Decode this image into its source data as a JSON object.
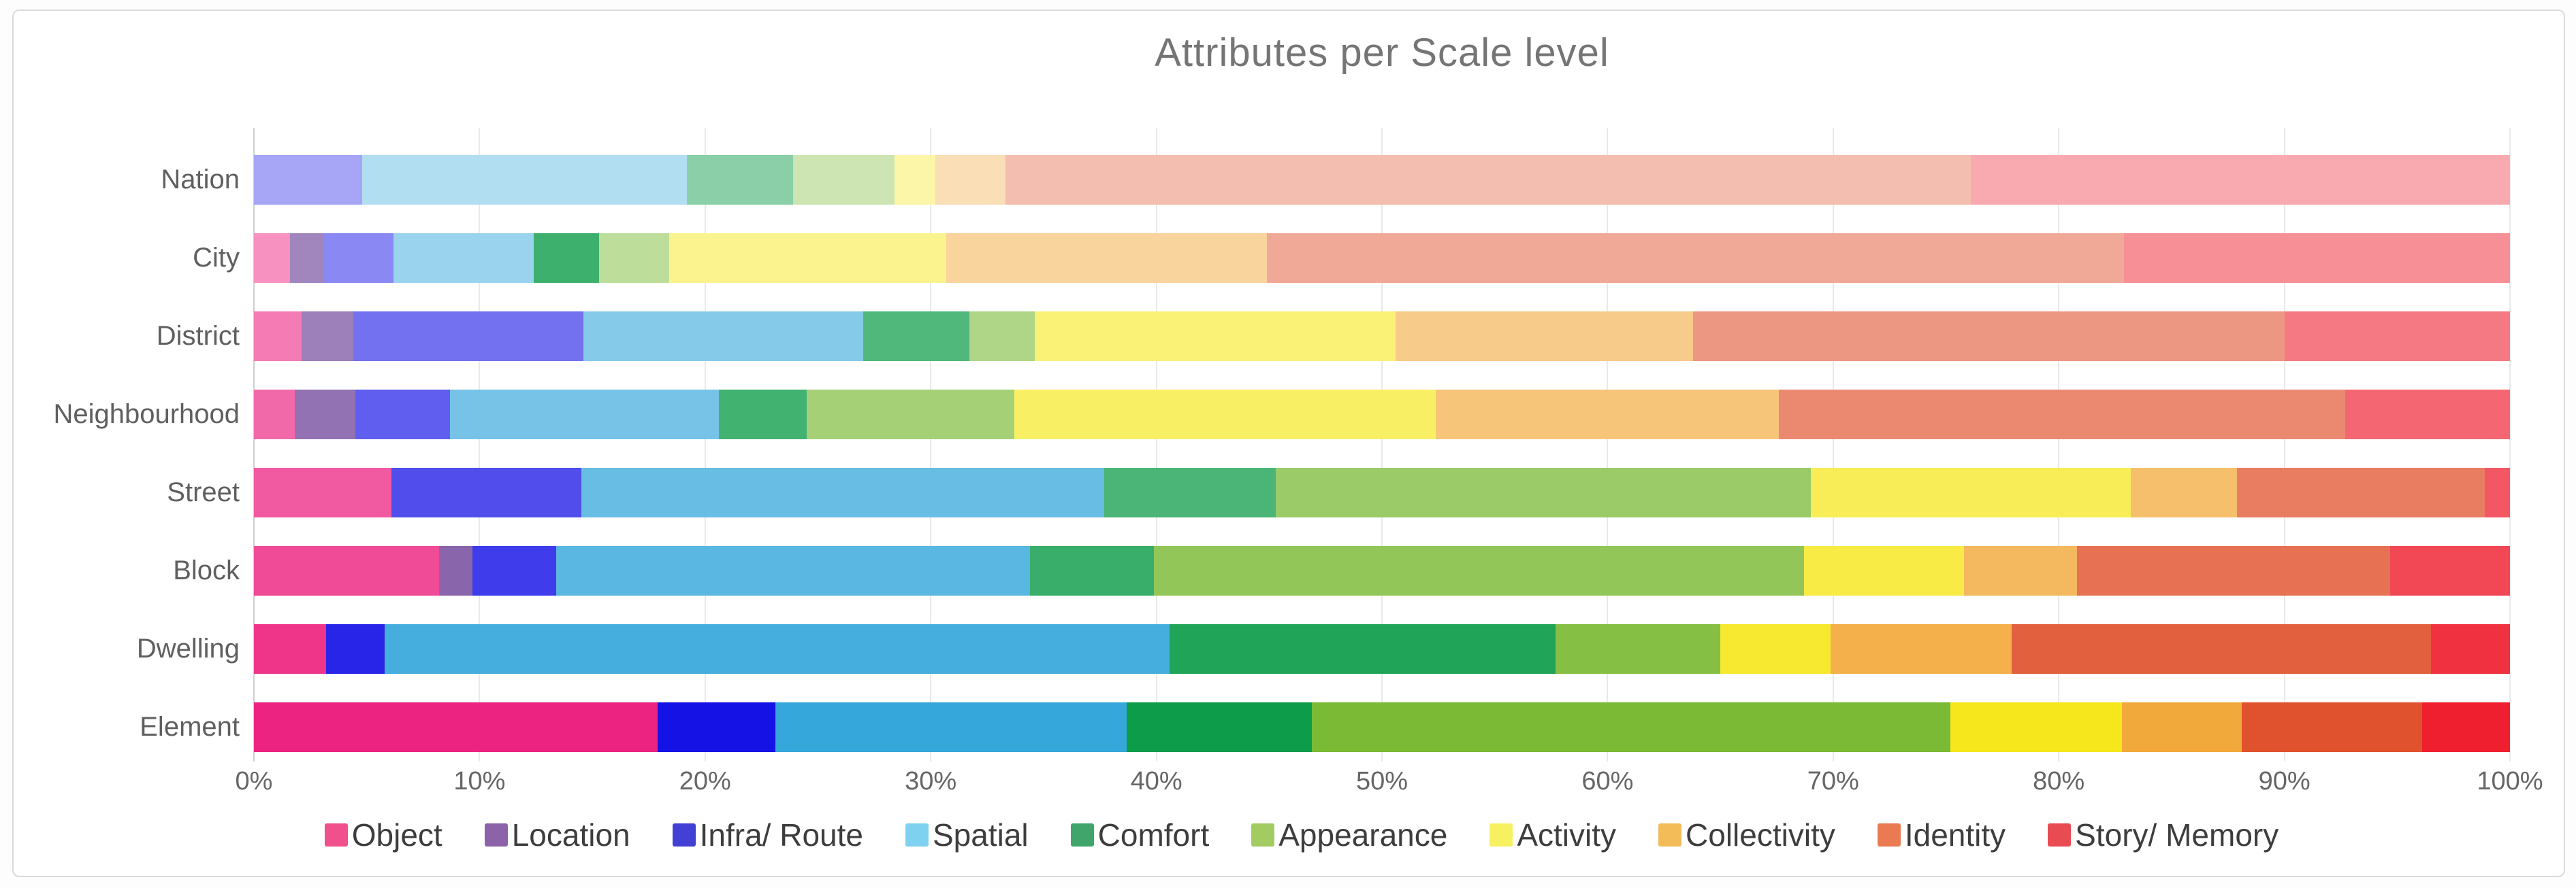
{
  "chart_data": {
    "type": "bar",
    "orientation": "horizontal",
    "stacking": "percent",
    "title": "Attributes per Scale level",
    "xlabel": "",
    "ylabel": "",
    "xlim": [
      0,
      100
    ],
    "grid": "vertical-10-percent",
    "legend_position": "bottom",
    "categories": [
      "Nation",
      "City",
      "District",
      "Neighbourhood",
      "Street",
      "Block",
      "Dwelling",
      "Element"
    ],
    "x_ticks": [
      "0%",
      "10%",
      "20%",
      "30%",
      "40%",
      "50%",
      "60%",
      "70%",
      "80%",
      "90%",
      "100%"
    ],
    "row_opacity_note": "bars fade toward larger scale levels; opacity per category row",
    "row_alphas": [
      0.38,
      0.5,
      0.6,
      0.68,
      0.75,
      0.82,
      0.92,
      1.0
    ],
    "alpha_overrides": {
      "Nation": {
        "Comfort": 0.48
      },
      "City": {
        "Location": 0.65,
        "Comfort": 0.8
      },
      "District": {
        "Location": 0.68,
        "Comfort": 0.72
      },
      "Neighbourhood": {
        "Location": 0.75,
        "Comfort": 0.78
      }
    },
    "series": [
      {
        "name": "Object",
        "color": "#EC2380",
        "legend_color": "#F0508C",
        "values": [
          0,
          1.6,
          2.1,
          1.8,
          6.1,
          8.2,
          3.2,
          17.9
        ]
      },
      {
        "name": "Location",
        "color": "#6F4399",
        "legend_color": "#8C63A8",
        "values": [
          0,
          1.5,
          2.3,
          2.7,
          0,
          1.5,
          0,
          0
        ]
      },
      {
        "name": "Infra/ Route",
        "color": "#1512E6",
        "legend_color": "#4340D6",
        "values": [
          4.8,
          3.1,
          10.2,
          4.2,
          8.4,
          3.7,
          2.6,
          5.2
        ]
      },
      {
        "name": "Spatial",
        "color": "#35A7DB",
        "legend_color": "#7FD2EF",
        "values": [
          14.4,
          6.2,
          12.4,
          11.9,
          23.2,
          21.0,
          34.8,
          15.6
        ]
      },
      {
        "name": "Comfort",
        "color": "#0D9C49",
        "legend_color": "#3FA56B",
        "values": [
          4.7,
          2.9,
          4.7,
          3.9,
          7.6,
          5.5,
          17.1,
          8.2
        ]
      },
      {
        "name": "Appearance",
        "color": "#7ABA35",
        "legend_color": "#A2CB62",
        "values": [
          4.5,
          3.1,
          2.9,
          9.2,
          23.7,
          28.8,
          7.3,
          28.3
        ]
      },
      {
        "name": "Activity",
        "color": "#F6E71D",
        "legend_color": "#F7F060",
        "values": [
          1.8,
          12.3,
          16.0,
          18.7,
          14.2,
          7.1,
          4.9,
          7.6
        ]
      },
      {
        "name": "Collectivity",
        "color": "#F2A93B",
        "legend_color": "#F3BC59",
        "values": [
          3.1,
          14.2,
          13.2,
          15.2,
          4.7,
          5.0,
          8.0,
          5.3
        ]
      },
      {
        "name": "Identity",
        "color": "#E0522D",
        "legend_color": "#EA7A52",
        "values": [
          42.8,
          38.0,
          26.2,
          25.1,
          11.0,
          13.9,
          18.6,
          8.0
        ]
      },
      {
        "name": "Story/ Memory",
        "color": "#EF1F2F",
        "legend_color": "#E94B52",
        "values": [
          23.9,
          17.1,
          10.0,
          7.3,
          1.1,
          5.3,
          3.5,
          3.9
        ]
      }
    ]
  }
}
